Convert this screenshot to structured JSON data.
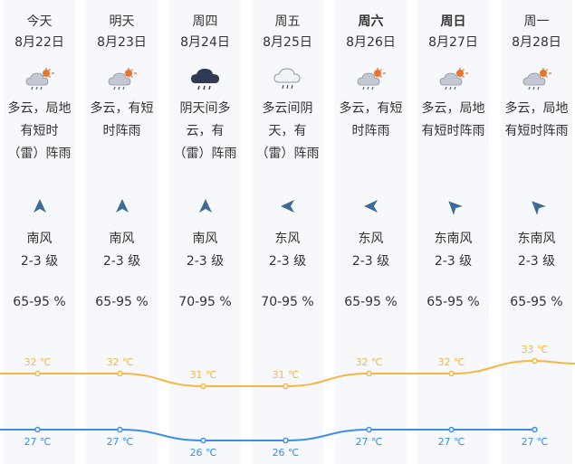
{
  "days": [
    {
      "name": "今天",
      "bold": false,
      "date": "8月22日",
      "icon": "cloud-sun-rain-icon",
      "desc": [
        "多云，局地",
        "有短时",
        "（雷）阵雨"
      ],
      "wind_dir": "南风",
      "wind_level": "2-3 级",
      "humidity": "65-95 %",
      "wind_rotate": 0,
      "high": "32 ℃",
      "low": "27 ℃"
    },
    {
      "name": "明天",
      "bold": false,
      "date": "8月23日",
      "icon": "cloud-sun-rain-icon",
      "desc": [
        "多云，有短",
        "时阵雨"
      ],
      "wind_dir": "南风",
      "wind_level": "2-3 级",
      "humidity": "65-95 %",
      "wind_rotate": 0,
      "high": "32 ℃",
      "low": "27 ℃"
    },
    {
      "name": "周四",
      "bold": false,
      "date": "8月24日",
      "icon": "dark-cloud-rain-icon",
      "desc": [
        "阴天间多",
        "云，有",
        "（雷）阵雨"
      ],
      "wind_dir": "南风",
      "wind_level": "2-3 级",
      "humidity": "70-95 %",
      "wind_rotate": 0,
      "high": "31 ℃",
      "low": "26 ℃"
    },
    {
      "name": "周五",
      "bold": false,
      "date": "8月25日",
      "icon": "cloud-rain-icon",
      "desc": [
        "多云间阴",
        "天，有",
        "（雷）阵雨"
      ],
      "wind_dir": "东风",
      "wind_level": "2-3 级",
      "humidity": "70-95 %",
      "wind_rotate": -90,
      "high": "31 ℃",
      "low": "26 ℃"
    },
    {
      "name": "周六",
      "bold": true,
      "date": "8月26日",
      "icon": "cloud-sun-rain-icon",
      "desc": [
        "多云，有短",
        "时阵雨"
      ],
      "wind_dir": "东风",
      "wind_level": "2-3 级",
      "humidity": "65-95 %",
      "wind_rotate": -90,
      "high": "32 ℃",
      "low": "27 ℃"
    },
    {
      "name": "周日",
      "bold": true,
      "date": "8月27日",
      "icon": "cloud-sun-rain-icon",
      "desc": [
        "多云，局地",
        "有短时阵雨"
      ],
      "wind_dir": "东南风",
      "wind_level": "2-3 级",
      "humidity": "65-95 %",
      "wind_rotate": -45,
      "high": "32 ℃",
      "low": "27 ℃"
    },
    {
      "name": "周一",
      "bold": false,
      "date": "8月28日",
      "icon": "cloud-sun-rain-icon",
      "desc": [
        "多云，局地",
        "有短时阵雨"
      ],
      "wind_dir": "东南风",
      "wind_level": "2-3 级",
      "humidity": "65-95 %",
      "wind_rotate": -45,
      "high": "33 ℃",
      "low": "27 ℃"
    }
  ],
  "temps": {
    "high_values": [
      32,
      32,
      31,
      31,
      32,
      32,
      33
    ],
    "low_values": [
      27,
      27,
      26,
      26,
      27,
      27,
      27
    ],
    "high_color": "#f5b642",
    "low_color": "#3d8fe6"
  }
}
